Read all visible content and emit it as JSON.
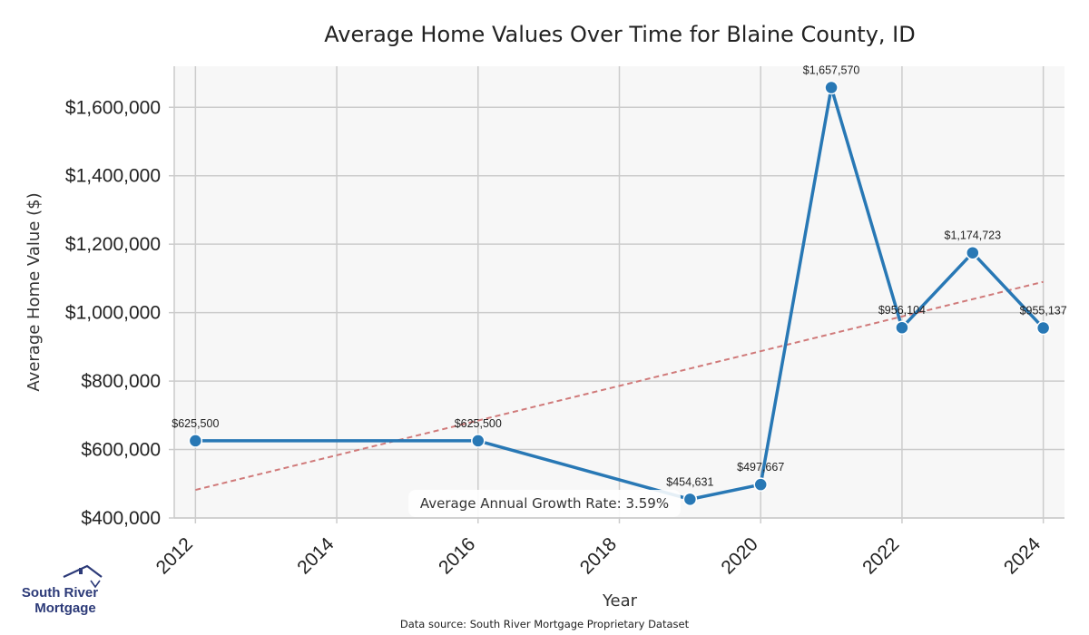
{
  "chart_data": {
    "type": "line",
    "title": "Average Home Values Over Time for Blaine County, ID",
    "xlabel": "Year",
    "ylabel": "Average Home Value ($)",
    "xlim": [
      2011.7,
      2024.3
    ],
    "ylim": [
      400000,
      1720000
    ],
    "xticks": [
      2012,
      2014,
      2016,
      2018,
      2020,
      2022,
      2024
    ],
    "xtick_labels": [
      "2012",
      "2014",
      "2016",
      "2018",
      "2020",
      "2022",
      "2024"
    ],
    "yticks": [
      400000,
      600000,
      800000,
      1000000,
      1200000,
      1400000,
      1600000
    ],
    "ytick_labels": [
      "$400,000",
      "$600,000",
      "$800,000",
      "$1,000,000",
      "$1,200,000",
      "$1,400,000",
      "$1,600,000"
    ],
    "grid": true,
    "series": [
      {
        "color": "#2878b5",
        "points": [
          {
            "x": 2012,
            "y": 625500,
            "label": "$625,500"
          },
          {
            "x": 2016,
            "y": 625500,
            "label": "$625,500"
          },
          {
            "x": 2019,
            "y": 454631,
            "label": "$454,631"
          },
          {
            "x": 2020,
            "y": 497667,
            "label": "$497,667"
          },
          {
            "x": 2021,
            "y": 1657570,
            "label": "$1,657,570"
          },
          {
            "x": 2022,
            "y": 956104,
            "label": "$956,104"
          },
          {
            "x": 2023,
            "y": 1174723,
            "label": "$1,174,723"
          },
          {
            "x": 2024,
            "y": 955137,
            "label": "$955,137"
          }
        ]
      }
    ],
    "trendline": {
      "color": "#d07a7a",
      "style": "dashed",
      "x": [
        2012,
        2024
      ],
      "y": [
        482000,
        1090000
      ]
    },
    "annotation": "Average Annual Growth Rate: 3.59%"
  },
  "footer": {
    "source": "Data source: South River Mortgage Proprietary Dataset"
  },
  "logo": {
    "line1": "South River",
    "line2": "Mortgage",
    "color": "#2c3a78"
  }
}
